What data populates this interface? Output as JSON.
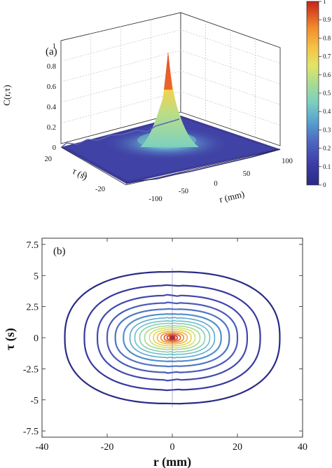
{
  "colors": {
    "colormap": [
      "#2a2a86",
      "#3d3ea8",
      "#4b58b8",
      "#4f7dc8",
      "#5aa5cf",
      "#6fc6c8",
      "#9bd69a",
      "#d6e26a",
      "#f3c448",
      "#f08a2a",
      "#d63a1c",
      "#b8211a"
    ],
    "axis": "#222222",
    "grid": "#b8b8b8"
  },
  "chart_data": [
    {
      "type": "surface",
      "panel_label": "(a)",
      "zlabel": "C(r,τ)",
      "xlabel": "r (mm)",
      "ylabel": "τ (s)",
      "x_ticks": [
        "-100",
        "-50",
        "0",
        "50",
        "100"
      ],
      "y_ticks": [
        "20",
        "0",
        "-20"
      ],
      "z_ticks": [
        "0",
        "0.2",
        "0.4",
        "0.6",
        "0.8",
        "1"
      ],
      "xlim": [
        -100,
        100
      ],
      "ylim": [
        -30,
        30
      ],
      "zlim": [
        0,
        1
      ],
      "peak": {
        "r": 0,
        "tau": 0,
        "value": 1.0
      },
      "shoulder_level": 0.3,
      "colorbar": {
        "ticks": [
          "1",
          "0.9",
          "0.8",
          "0.7",
          "0.6",
          "0.5",
          "0.4",
          "0.3",
          "0.2",
          "0.1",
          "0"
        ],
        "range": [
          0,
          1
        ]
      }
    },
    {
      "type": "contour",
      "panel_label": "(b)",
      "xlabel": "r (mm)",
      "ylabel": "τ (s)",
      "x_ticks": [
        "-40",
        "-20",
        "0",
        "20",
        "40"
      ],
      "y_ticks": [
        "7.5",
        "5",
        "2.5",
        "0",
        "-2.5",
        "-5",
        "-7.5"
      ],
      "xlim": [
        -40,
        40
      ],
      "ylim": [
        -8,
        8
      ],
      "contour_semi_axes": [
        {
          "a": 33,
          "b": 5.3
        },
        {
          "a": 27,
          "b": 4.2
        },
        {
          "a": 23,
          "b": 3.4
        },
        {
          "a": 20,
          "b": 2.8
        },
        {
          "a": 17.5,
          "b": 2.3
        },
        {
          "a": 15,
          "b": 1.9
        },
        {
          "a": 13,
          "b": 1.6
        },
        {
          "a": 11.5,
          "b": 1.35
        },
        {
          "a": 10,
          "b": 1.15
        },
        {
          "a": 8.5,
          "b": 0.95
        },
        {
          "a": 7,
          "b": 0.8
        },
        {
          "a": 5.8,
          "b": 0.65
        },
        {
          "a": 4.6,
          "b": 0.5
        },
        {
          "a": 3.5,
          "b": 0.38
        },
        {
          "a": 2.5,
          "b": 0.27
        },
        {
          "a": 1.6,
          "b": 0.17
        },
        {
          "a": 0.8,
          "b": 0.09
        }
      ]
    }
  ]
}
